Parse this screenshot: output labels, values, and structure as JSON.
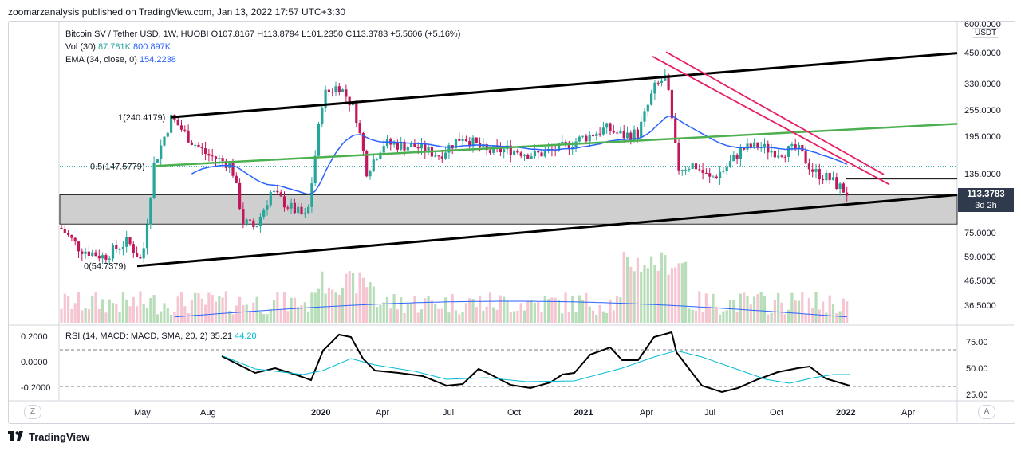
{
  "publisher_line": "zoomarzanalysis published on TradingView.com, Jan 13, 2022 17:57 UTC+3:30",
  "brand": {
    "logo_icon": "tradingview-logo-icon",
    "name": "TradingView"
  },
  "chart_data": {
    "type": "candlestick",
    "title": "Bitcoin SV / Tether USD, 1W, HUOBI",
    "ohlc": {
      "open_label": "O107.8167",
      "high_label": "H113.8794",
      "low_label": "L101.2350",
      "close_label": "C113.3783",
      "change_label": "+5.5606 (+5.16%)"
    },
    "indicators": {
      "vol_name": "Vol (30)",
      "vol_value": "87.781K",
      "vol_ma": "800.897K",
      "ema_name": "EMA (34, close, 0)",
      "ema_value": "154.2238",
      "rsi_name": "RSI (14, MACD: MACD, SMA, 20, 2)",
      "rsi_value": "35.21",
      "rsi_ma": "44.20"
    },
    "y_scale": "log",
    "price_axis_labels": [
      "600.0000",
      "450.0000",
      "330.0000",
      "255.0000",
      "195.0000",
      "135.0000",
      "75.0000",
      "59.0000",
      "46.5000",
      "36.5000"
    ],
    "price_axis_values": [
      600,
      450,
      330,
      255,
      195,
      135,
      75,
      59,
      46.5,
      36.5
    ],
    "currency_badge": "USDT",
    "last_price": "113.3783",
    "last_price_countdown": "3d 2h",
    "x_tick_labels": [
      "May",
      "Aug",
      "2020",
      "Apr",
      "Jul",
      "Oct",
      "2021",
      "Apr",
      "Jul",
      "Oct",
      "2022",
      "Apr"
    ],
    "x_tick_bold": [
      false,
      false,
      true,
      false,
      false,
      false,
      true,
      false,
      false,
      false,
      true,
      false
    ],
    "fib_labels": [
      "1(240.4179)",
      "0.5(147.5779)",
      "0(54.7379)"
    ],
    "fib_values": [
      240.4179,
      147.5779,
      54.7379
    ],
    "support_zone": [
      83,
      111
    ],
    "resistance_line_level": 130,
    "rsi_axis_labels": [
      "75.00",
      "50.00",
      "25.00"
    ],
    "macd_axis_labels": [
      "0.2000",
      "0.0000",
      "-0.2000"
    ],
    "rsi_levels": [
      75,
      50,
      25
    ],
    "colors": {
      "up": "#26a69a",
      "down": "#ef5350",
      "down_candle": "#c2185b",
      "ema": "#2962ff",
      "channel": "#000000",
      "green_line": "#4caf50",
      "pink_lines": "#e91e63",
      "rsi": "#000000",
      "rsi_ma": "#00bcd4",
      "zone": "#d1d4dc"
    },
    "corner_left": "Z",
    "corner_right": "A"
  }
}
